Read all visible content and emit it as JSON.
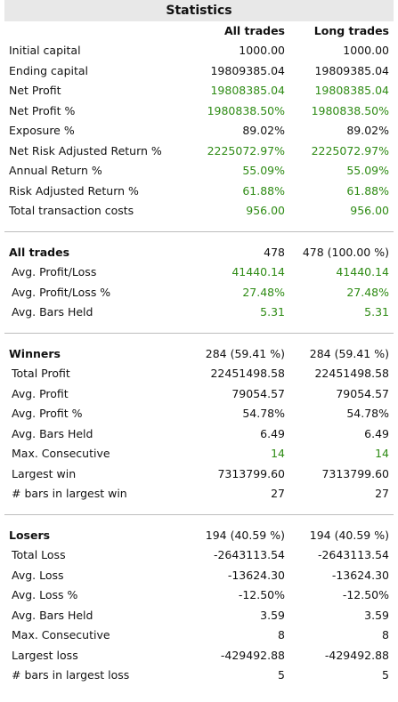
{
  "title": "Statistics",
  "columns": [
    "All trades",
    "Long trades"
  ],
  "colors": {
    "positive": "#2e8b14",
    "header_bg": "#e8e8e8",
    "separator": "#bdbdbd"
  },
  "summary": [
    {
      "label": "Initial capital",
      "all": "1000.00",
      "long": "1000.00",
      "green": false
    },
    {
      "label": "Ending capital",
      "all": "19809385.04",
      "long": "19809385.04",
      "green": false
    },
    {
      "label": "Net Profit",
      "all": "19808385.04",
      "long": "19808385.04",
      "green": true
    },
    {
      "label": "Net Profit %",
      "all": "1980838.50%",
      "long": "1980838.50%",
      "green": true
    },
    {
      "label": "Exposure %",
      "all": "89.02%",
      "long": "89.02%",
      "green": false
    },
    {
      "label": "Net Risk Adjusted Return %",
      "all": "2225072.97%",
      "long": "2225072.97%",
      "green": true
    },
    {
      "label": "Annual Return %",
      "all": "55.09%",
      "long": "55.09%",
      "green": true
    },
    {
      "label": "Risk Adjusted Return %",
      "all": "61.88%",
      "long": "61.88%",
      "green": true
    },
    {
      "label": "Total transaction costs",
      "all": "956.00",
      "long": "956.00",
      "green": true
    }
  ],
  "all_trades": {
    "label": "All trades",
    "all": "478",
    "long": "478 (100.00 %)",
    "rows": [
      {
        "label": "Avg. Profit/Loss",
        "all": "41440.14",
        "long": "41440.14",
        "green": true
      },
      {
        "label": "Avg. Profit/Loss %",
        "all": "27.48%",
        "long": "27.48%",
        "green": true
      },
      {
        "label": "Avg. Bars Held",
        "all": "5.31",
        "long": "5.31",
        "green": true
      }
    ]
  },
  "winners": {
    "label": "Winners",
    "all": "284 (59.41 %)",
    "long": "284 (59.41 %)",
    "rows": [
      {
        "label": "Total Profit",
        "all": "22451498.58",
        "long": "22451498.58",
        "green": false
      },
      {
        "label": "Avg. Profit",
        "all": "79054.57",
        "long": "79054.57",
        "green": false
      },
      {
        "label": "Avg. Profit %",
        "all": "54.78%",
        "long": "54.78%",
        "green": false
      },
      {
        "label": "Avg. Bars Held",
        "all": "6.49",
        "long": "6.49",
        "green": false
      },
      {
        "label": "Max. Consecutive",
        "all": "14",
        "long": "14",
        "green": true
      },
      {
        "label": "Largest win",
        "all": "7313799.60",
        "long": "7313799.60",
        "green": false
      },
      {
        "label": "# bars in largest win",
        "all": "27",
        "long": "27",
        "green": false
      }
    ]
  },
  "losers": {
    "label": "Losers",
    "all": "194 (40.59 %)",
    "long": "194 (40.59 %)",
    "rows": [
      {
        "label": "Total Loss",
        "all": "-2643113.54",
        "long": "-2643113.54",
        "green": false
      },
      {
        "label": "Avg. Loss",
        "all": "-13624.30",
        "long": "-13624.30",
        "green": false
      },
      {
        "label": "Avg. Loss %",
        "all": "-12.50%",
        "long": "-12.50%",
        "green": false
      },
      {
        "label": "Avg. Bars Held",
        "all": "3.59",
        "long": "3.59",
        "green": false
      },
      {
        "label": "Max. Consecutive",
        "all": "8",
        "long": "8",
        "green": false
      },
      {
        "label": "Largest loss",
        "all": "-429492.88",
        "long": "-429492.88",
        "green": false
      },
      {
        "label": "# bars in largest loss",
        "all": "5",
        "long": "5",
        "green": false
      }
    ]
  }
}
